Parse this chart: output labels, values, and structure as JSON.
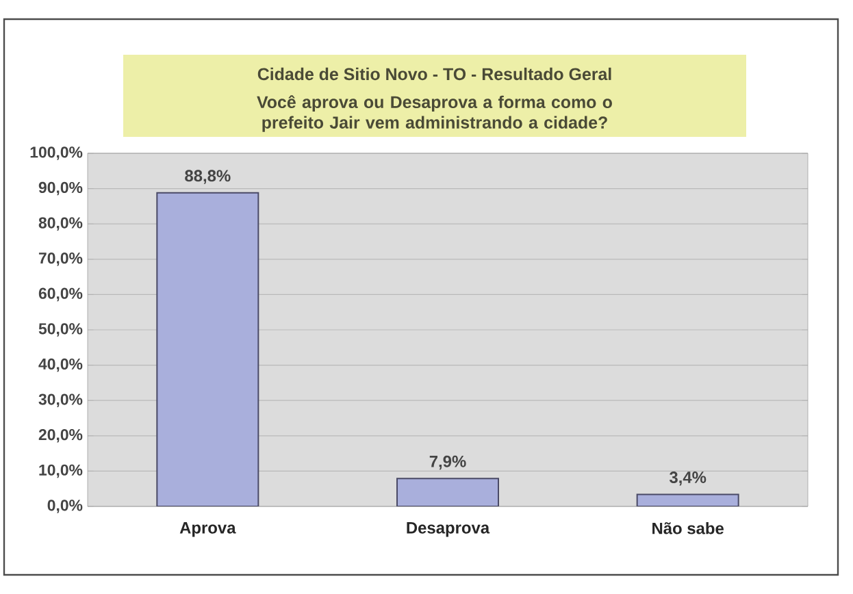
{
  "chart_data": {
    "type": "bar",
    "title": "Cidade de Sitio Novo - TO - Resultado Geral",
    "subtitle": "Você aprova ou Desaprova a forma como o prefeito Jair vem administrando a cidade?",
    "categories": [
      "Aprova",
      "Desaprova",
      "Não sabe"
    ],
    "values": [
      88.8,
      7.9,
      3.4
    ],
    "value_labels": [
      "88,8%",
      "7,9%",
      "3,4%"
    ],
    "color": "#a9afdc",
    "ylim": [
      0,
      100
    ],
    "yticks": [
      {
        "value": 0,
        "label": "0,0%"
      },
      {
        "value": 10,
        "label": "10,0%"
      },
      {
        "value": 20,
        "label": "20,0%"
      },
      {
        "value": 30,
        "label": "30,0%"
      },
      {
        "value": 40,
        "label": "40,0%"
      },
      {
        "value": 50,
        "label": "50,0%"
      },
      {
        "value": 60,
        "label": "60,0%"
      },
      {
        "value": 70,
        "label": "70,0%"
      },
      {
        "value": 80,
        "label": "80,0%"
      },
      {
        "value": 90,
        "label": "90,0%"
      },
      {
        "value": 100,
        "label": "100,0%"
      }
    ],
    "grid": "y"
  }
}
